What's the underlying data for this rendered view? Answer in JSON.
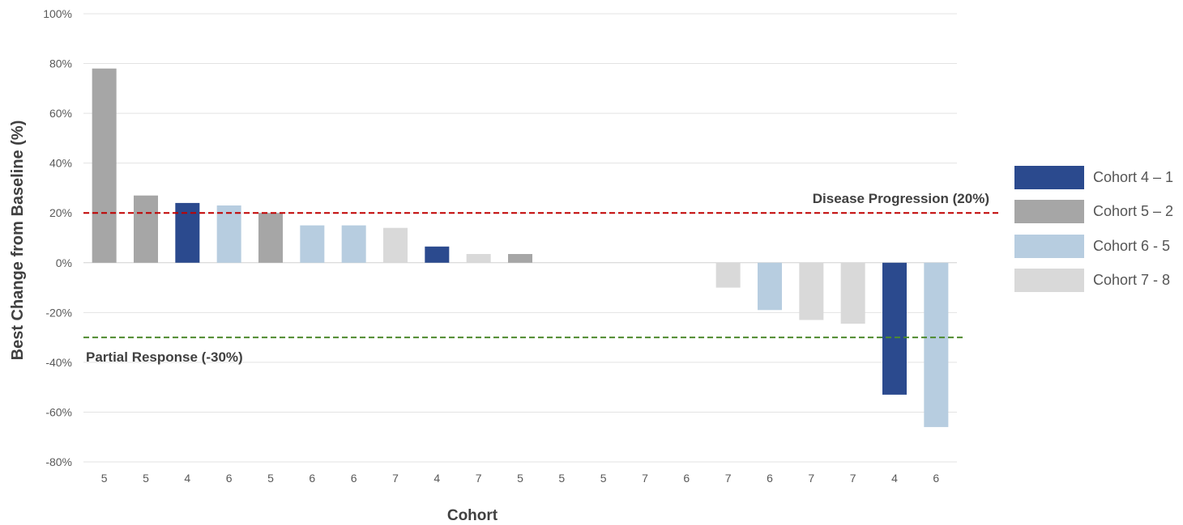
{
  "chart_data": {
    "type": "bar",
    "title": "",
    "xlabel": "Cohort",
    "ylabel": "Best Change from Baseline (%)",
    "ylim": [
      -80,
      100
    ],
    "yticks": [
      -80,
      -60,
      -40,
      -20,
      0,
      20,
      40,
      60,
      80,
      100
    ],
    "ytick_labels": [
      "-80%",
      "-60%",
      "-40%",
      "-20%",
      "0%",
      "20%",
      "40%",
      "60%",
      "80%",
      "100%"
    ],
    "grid": true,
    "legend_position": "right",
    "categories": [
      "5",
      "5",
      "4",
      "6",
      "5",
      "6",
      "6",
      "7",
      "4",
      "7",
      "5",
      "5",
      "5",
      "7",
      "6",
      "7",
      "6",
      "7",
      "7",
      "4",
      "6"
    ],
    "values": [
      78,
      27,
      24,
      23,
      20,
      15,
      15,
      14,
      6.5,
      3.5,
      3.5,
      0,
      0,
      0,
      0,
      -10,
      -19,
      -23,
      -24.5,
      -53,
      -66
    ],
    "cohorts": [
      "5",
      "5",
      "4",
      "6",
      "5",
      "6",
      "6",
      "7",
      "4",
      "7",
      "5",
      "5",
      "5",
      "7",
      "6",
      "7",
      "6",
      "7",
      "7",
      "4",
      "6"
    ],
    "cohort_colors": {
      "4": "#2b4a8e",
      "5": "#a6a6a6",
      "6": "#b7cde0",
      "7": "#d9d9d9"
    },
    "legend": [
      {
        "label": "Cohort 4 – 1",
        "cohort": "4"
      },
      {
        "label": "Cohort 5 – 2",
        "cohort": "5"
      },
      {
        "label": "Cohort 6  - 5",
        "cohort": "6"
      },
      {
        "label": "Cohort 7  - 8",
        "cohort": "7"
      }
    ],
    "reference_lines": [
      {
        "label": "Disease Progression (20%)",
        "value": 20,
        "color": "#c00000"
      },
      {
        "label": "Partial Response (-30%)",
        "value": -30,
        "color": "#4e8a2e"
      }
    ]
  }
}
